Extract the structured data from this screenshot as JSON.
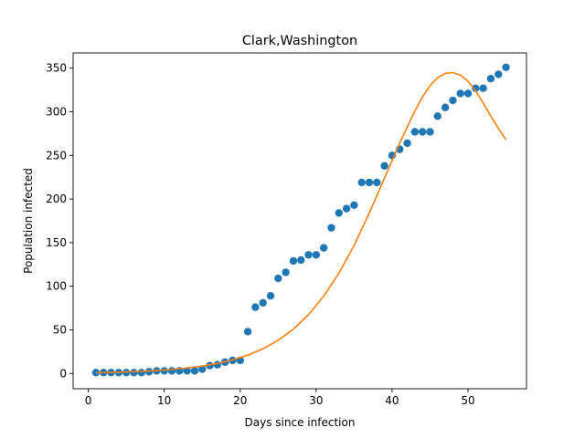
{
  "chart_data": {
    "type": "scatter",
    "title": "Clark,Washington",
    "xlabel": "Days since infection",
    "ylabel": "Population infected",
    "xlim": [
      -2,
      57.7
    ],
    "ylim": [
      -17.5,
      367.5
    ],
    "xticks": [
      0,
      10,
      20,
      30,
      40,
      50
    ],
    "yticks": [
      0,
      50,
      100,
      150,
      200,
      250,
      300,
      350
    ],
    "grid": false,
    "legend": "none",
    "series": [
      {
        "kind": "scatter",
        "color": "#1f77b4",
        "x": [
          1,
          2,
          3,
          4,
          5,
          6,
          7,
          8,
          9,
          10,
          11,
          12,
          13,
          14,
          15,
          16,
          17,
          18,
          19,
          20,
          21,
          22,
          23,
          24,
          25,
          26,
          27,
          28,
          29,
          30,
          31,
          32,
          33,
          34,
          35,
          36,
          37,
          38,
          39,
          40,
          41,
          42,
          43,
          44,
          45,
          46,
          47,
          48,
          49,
          50,
          51,
          52,
          53,
          54,
          55
        ],
        "y": [
          1,
          1,
          1,
          1,
          1,
          1,
          1,
          2,
          3,
          3,
          3,
          3,
          3,
          3,
          5,
          9,
          10,
          13,
          15,
          15,
          48,
          76,
          81,
          89,
          109,
          116,
          129,
          130,
          136,
          136,
          144,
          167,
          184,
          189,
          193,
          219,
          219,
          219,
          238,
          250,
          257,
          264,
          277,
          277,
          277,
          295,
          305,
          313,
          321,
          321,
          327,
          327,
          338,
          343,
          351
        ]
      },
      {
        "kind": "line",
        "color": "#ff7f0e",
        "x": [
          1,
          3,
          5,
          7,
          9,
          11,
          13,
          15,
          17,
          19,
          21,
          23,
          25,
          27,
          29,
          31,
          33,
          35,
          37,
          39,
          41,
          43,
          44,
          45,
          46,
          47,
          48,
          49,
          50,
          51,
          52,
          53,
          54,
          55
        ],
        "y": [
          0.8,
          1.2,
          1.8,
          2.5,
          3.4,
          4.6,
          6.3,
          8.5,
          11.5,
          15.6,
          21,
          28.3,
          38,
          50.8,
          67.4,
          88.6,
          115,
          146.8,
          184,
          224,
          264,
          301,
          317,
          330,
          339,
          344,
          345,
          342,
          335,
          324,
          310,
          295,
          281,
          268
        ]
      }
    ]
  }
}
